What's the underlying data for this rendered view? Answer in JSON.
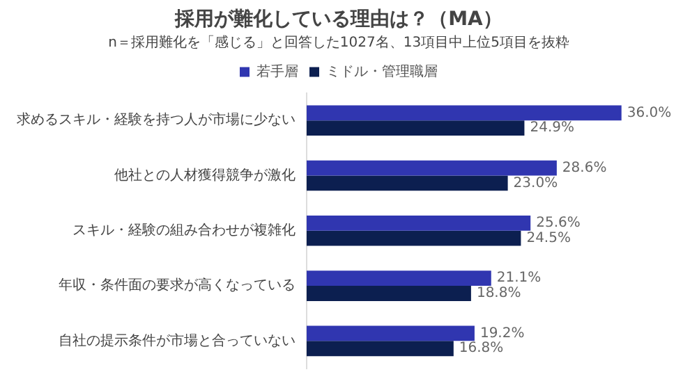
{
  "chart_data": {
    "type": "bar",
    "orientation": "horizontal",
    "title": "採用が難化している理由は？（MA）",
    "subtitle": "n＝採用難化を「感じる」と回答した1027名、13項目中上位5項目を抜粋",
    "categories": [
      "求めるスキル・経験を持つ人が市場に少ない",
      "他社との人材獲得競争が激化",
      "スキル・経験の組み合わせが複雑化",
      "年収・条件面の要求が高くなっている",
      "自社の提示条件が市場と合っていない"
    ],
    "series": [
      {
        "name": "若手層",
        "color": "#3036b0",
        "values": [
          36.0,
          28.6,
          25.6,
          21.1,
          19.2
        ],
        "value_labels": [
          "36.0%",
          "28.6%",
          "25.6%",
          "21.1%",
          "19.2%"
        ]
      },
      {
        "name": "ミドル・管理職層",
        "color": "#0c1f50",
        "values": [
          24.9,
          23.0,
          24.5,
          18.8,
          16.8
        ],
        "value_labels": [
          "24.9%",
          "23.0%",
          "24.5%",
          "18.8%",
          "16.8%"
        ]
      }
    ],
    "legend": "top"
  }
}
